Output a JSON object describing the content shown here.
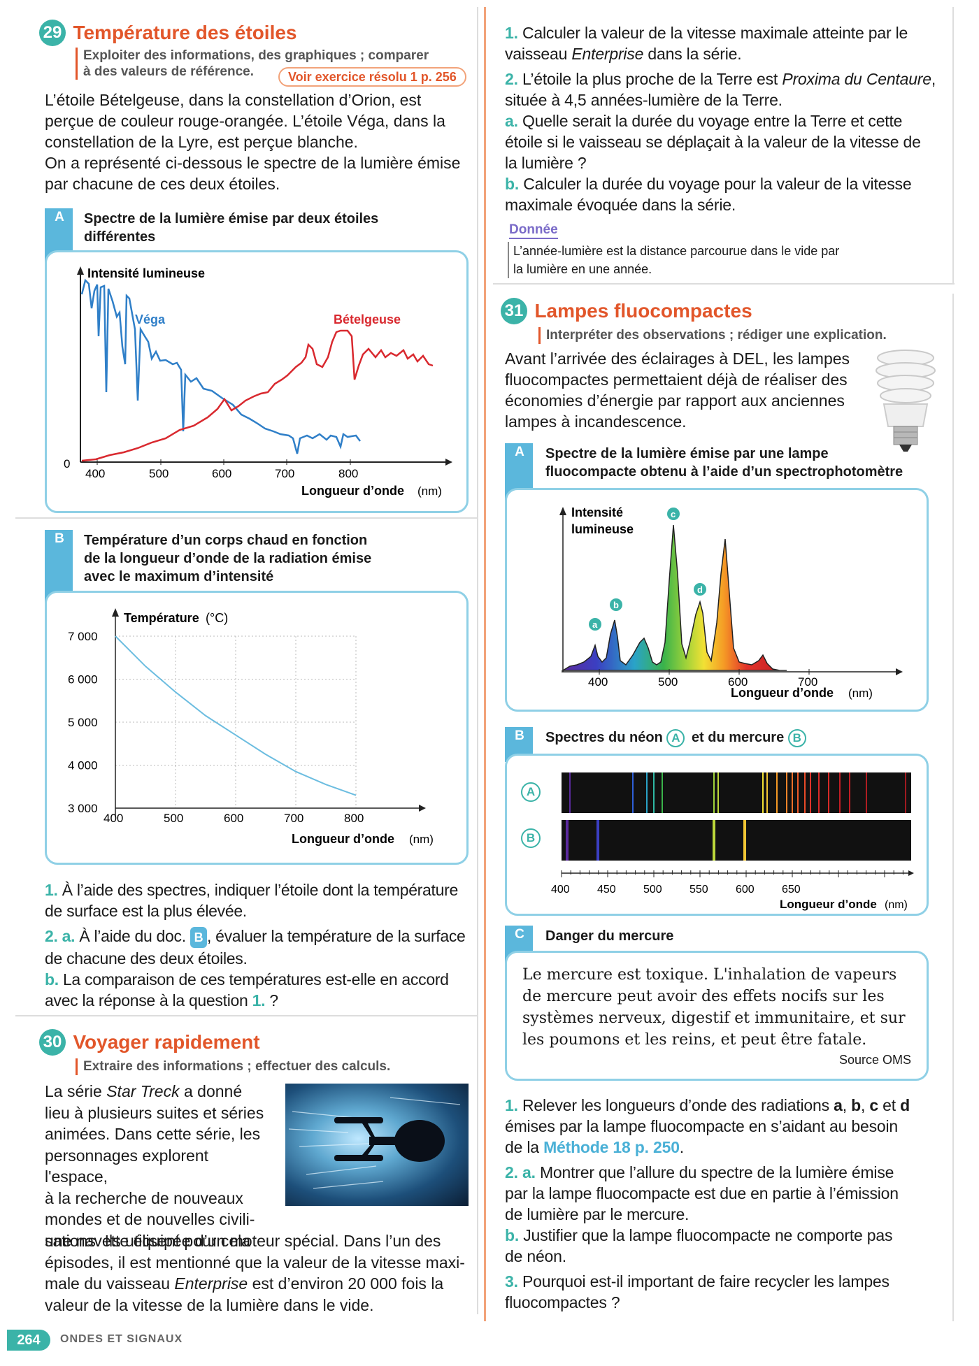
{
  "ex29": {
    "num": "29",
    "title": "Température des étoiles",
    "skills1": "Exploiter des informations, des graphiques ; comparer",
    "skills2": "à des valeurs de référence.",
    "ref": "Voir exercice résolu 1 p. 256",
    "p1": "L’étoile Bételgeuse, dans la constellation d’Orion, est",
    "p2": "perçue de couleur rouge-orangée. L’étoile Véga, dans la",
    "p3": "constellation de la Lyre, est perçue blanche.",
    "p4": "On a représenté ci-dessous le spectre de la lumière émise",
    "p5": "par chacune de ces deux étoiles.",
    "docA_tag": "A",
    "docA_t1": "Spectre de la lumière émise par deux étoiles",
    "docA_t2": "différentes",
    "docB_tag": "B",
    "docB_t1": "Température d’un corps chaud en fonction",
    "docB_t2": "de la longueur d’onde de la radiation émise",
    "docB_t3": "avec le maximum d’intensité",
    "q1n": "1.",
    "q1a": "À l’aide des spectres, indiquer l’étoile dont la température",
    "q1b": "de surface est la plus élevée.",
    "q2n": "2. a.",
    "q2a_pre": "À l’aide du doc.",
    "q2a_ref": "B",
    "q2a_post": ", évaluer la température de la surface",
    "q2b": "de chacune des deux étoiles.",
    "qbn": "b.",
    "qba": "La comparaison de ces températures est-elle en accord",
    "qbb_pre": "avec la réponse à la question",
    "qbb_ref": "1.",
    "qbb_post": " ?"
  },
  "ex30": {
    "num": "30",
    "title": "Voyager rapidement",
    "skills": "Extraire des informations ; effectuer des calculs.",
    "l1": "La série",
    "l1i": "Star Treck",
    "l1b": "a donné",
    "l2": "lieu à plusieurs suites et séries",
    "l3": "animées. Dans cette série, les",
    "l4": "personnages explorent l'espace,",
    "l5": "à la recherche de nouveaux",
    "l6": "mondes et de nouvelles civili-",
    "l7": "sations. Ils utilisent pour cela",
    "l8": "une navette équipée d’un moteur spécial. Dans l’un des",
    "l9": "épisodes, il est mentionné que la valeur de la vitesse maxi-",
    "l10a": "male du vaisseau",
    "l10i": "Enterprise",
    "l10b": "est d’environ 20 000 fois la",
    "l11": "valeur de la vitesse de la lumière dans le vide.",
    "q1n": "1.",
    "q1a": "Calculer la valeur de la vitesse maximale atteinte par le",
    "q1b_pre": "vaisseau",
    "q1b_i": "Enterprise",
    "q1b_post": "dans la série.",
    "q2n": "2.",
    "q2a_pre": "L’étoile la plus proche de la Terre est",
    "q2a_i": "Proxima du Centaure",
    "q2a_post": ",",
    "q2b": "située à 4,5 années-lumière de la Terre.",
    "qan": "a.",
    "qaa": "Quelle serait la durée du voyage entre la Terre et cette",
    "qab": "étoile si le vaisseau se déplaçait à la valeur de la vitesse de",
    "qac": "la lumière ?",
    "qbn": "b.",
    "qba": "Calculer la durée du voyage pour la valeur de la vitesse",
    "qbb": "maximale évoquée dans la série.",
    "donnee": "Donnée",
    "d1": "L’année-lumière est la distance parcourue dans le vide par",
    "d2": "la lumière en une année."
  },
  "ex31": {
    "num": "31",
    "title": "Lampes fluocompactes",
    "skills": "Interpréter des observations ; rédiger une explication.",
    "p1": "Avant l’arrivée des éclairages à DEL, les lampes",
    "p2": "fluocompactes permettaient déjà de réaliser des",
    "p3": "économies d’énergie par rapport aux anciennes",
    "p4": "lampes à incandescence.",
    "docA_tag": "A",
    "docA_t1": "Spectre de la lumière émise par une lampe",
    "docA_t2": "fluocompacte obtenu à l’aide d’un spectrophotomètre",
    "docB_tag": "B",
    "docB_t1": "Spectres du néon",
    "docB_a": "A",
    "docB_t2": "et du mercure",
    "docB_b": "B",
    "docC_tag": "C",
    "docC_t": "Danger du mercure",
    "c1": "Le mercure est toxique. L'inhalation de vapeurs",
    "c2": "de mercure peut avoir des effets nocifs sur les",
    "c3": "systèmes nerveux, digestif et immunitaire, et sur",
    "c4": "les poumons et les reins, et peut être fatale.",
    "csrc": "Source OMS",
    "q1n": "1.",
    "q1a": "Relever les longueurs d’onde des radiations",
    "q1a_b": "a",
    "q1a_c": "b",
    "q1a_d": "c",
    "q1a_et": "et",
    "q1a_e": "d",
    "q1b": "émises par la lampe fluocompacte en s’aidant au besoin",
    "q1c_pre": "de la",
    "q1c_ref": "Méthode 18 p. 250",
    "q1c_post": ".",
    "q2n": "2. a.",
    "q2a": "Montrer que l’allure du spectre de la lumière émise",
    "q2b": "par la lampe fluocompacte est due en partie à l’émission",
    "q2c": "de lumière par le mercure.",
    "qbn": "b.",
    "qba": "Justifier que la lampe fluocompacte ne comporte pas",
    "qbb": "de néon.",
    "q3n": "3.",
    "q3a": "Pourquoi est-il important de faire recycler les lampes",
    "q3b": "fluocompactes ?"
  },
  "footer": {
    "page": "264",
    "section": "ONDES ET SIGNAUX"
  },
  "chart_data": [
    {
      "type": "line",
      "ylabel": "Intensité lumineuse",
      "xlabel": "Longueur d’onde",
      "xunit": "(nm)",
      "xticks": [
        "400",
        "500",
        "600",
        "700",
        "800"
      ],
      "y0": "0",
      "series": [
        {
          "name": "Véga",
          "color": "#2f7fc8"
        },
        {
          "name": "Bételgeuse",
          "color": "#d9292f"
        }
      ]
    },
    {
      "type": "line",
      "ylabel": "Température",
      "yunit": "(°C)",
      "xlabel": "Longueur d’onde",
      "xunit": "(nm)",
      "xlim": [
        400,
        800
      ],
      "ylim": [
        3000,
        7000
      ],
      "xticks": [
        "400",
        "500",
        "600",
        "700",
        "800"
      ],
      "yticks": [
        "7 000",
        "6 000",
        "5 000",
        "4 000",
        "3 000"
      ],
      "x": [
        400,
        450,
        500,
        550,
        600,
        650,
        700,
        750,
        800
      ],
      "y": [
        7000,
        6300,
        5700,
        5150,
        4700,
        4250,
        3850,
        3550,
        3300
      ]
    },
    {
      "type": "line",
      "ylabel1": "Intensité",
      "ylabel2": "lumineuse",
      "xlabel": "Longueur d’onde",
      "xunit": "(nm)",
      "xticks": [
        "400",
        "500",
        "600",
        "700"
      ],
      "peaks": [
        {
          "label": "a",
          "x": 404
        },
        {
          "label": "b",
          "x": 436
        },
        {
          "label": "c",
          "x": 546
        },
        {
          "label": "d",
          "x": 578
        }
      ]
    },
    {
      "type": "spectrum",
      "xticks": [
        "400",
        "450",
        "500",
        "550",
        "600",
        "650"
      ],
      "xlabel": "Longueur d’onde",
      "xunit": "(nm)",
      "rows": [
        "A",
        "B"
      ]
    }
  ]
}
